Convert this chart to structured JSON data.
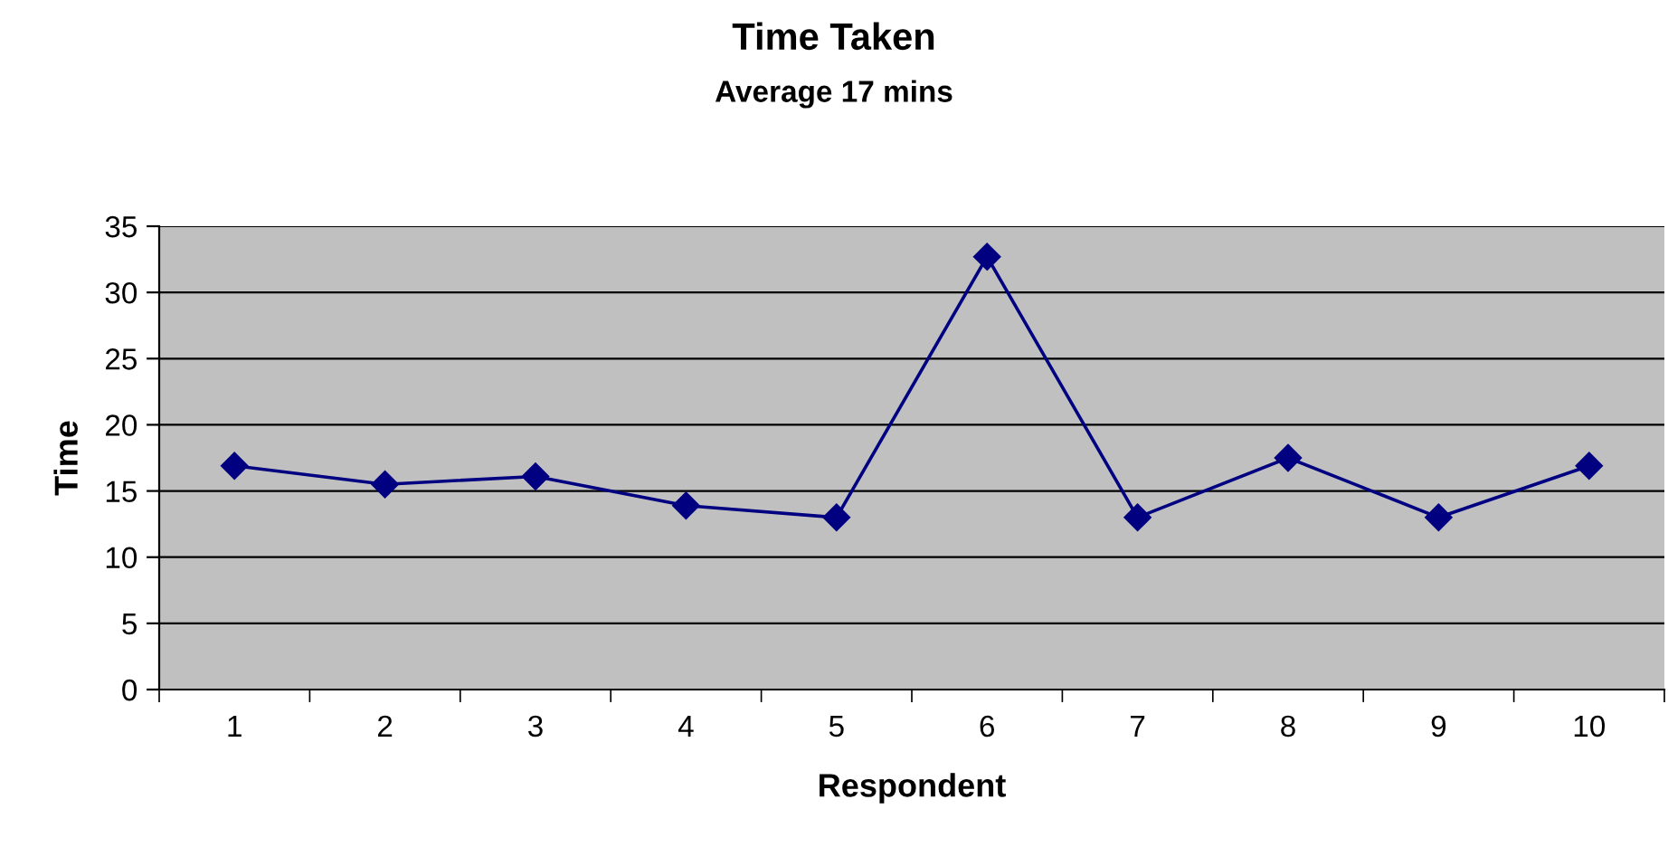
{
  "chart_data": {
    "type": "line",
    "title": "Time Taken",
    "subtitle": "Average 17 mins",
    "xlabel": "Respondent",
    "ylabel": "Time",
    "categories": [
      "1",
      "2",
      "3",
      "4",
      "5",
      "6",
      "7",
      "8",
      "9",
      "10"
    ],
    "series": [
      {
        "color": "#000080",
        "values": [
          16.9,
          15.5,
          16.1,
          13.9,
          13.0,
          32.7,
          13.0,
          17.5,
          13.0,
          16.9
        ]
      }
    ],
    "ylim": [
      0,
      35
    ],
    "yticks": [
      0,
      5,
      10,
      15,
      20,
      25,
      30,
      35
    ],
    "grid": "y",
    "marker": "diamond",
    "line_style": "solid",
    "legend": false
  }
}
